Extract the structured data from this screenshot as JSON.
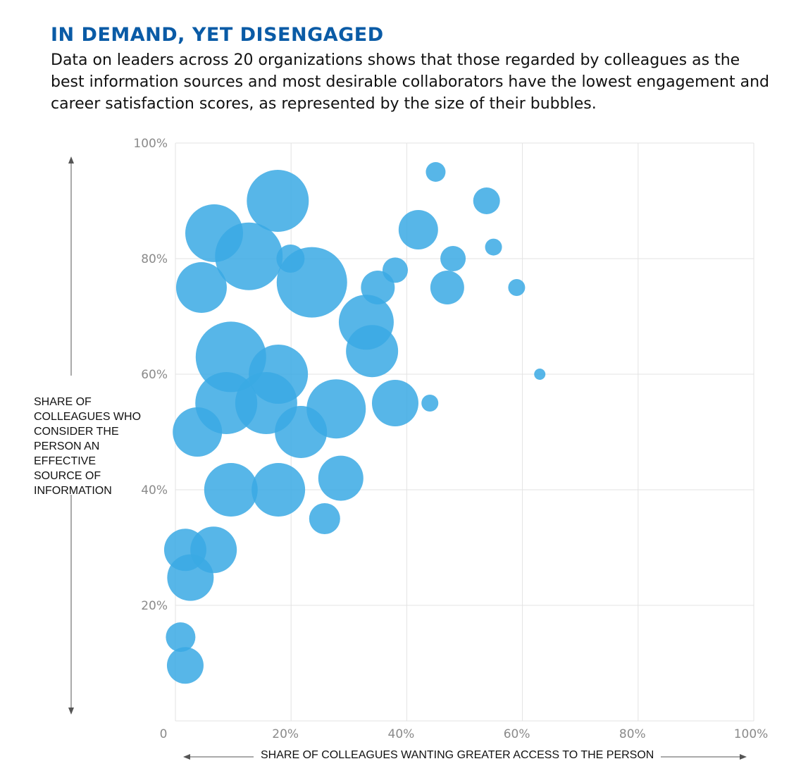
{
  "chart_data": {
    "type": "scatter",
    "title": "IN DEMAND, YET DISENGAGED",
    "subtitle": "Data on leaders across 20 organizations shows that those regarded by colleagues as the best information sources and most desirable collaborators have the lowest engagement and career satisfaction scores, as represented by the size of their bubbles.",
    "xlabel": "SHARE OF COLLEAGUES WANTING GREATER ACCESS TO THE PERSON",
    "ylabel": "SHARE OF COLLEAGUES WHO CONSIDER THE PERSON AN EFFECTIVE SOURCE OF INFORMATION",
    "xlim": [
      0,
      100
    ],
    "ylim": [
      0,
      100
    ],
    "x_ticks": [
      "0",
      "20%",
      "40%",
      "60%",
      "80%",
      "100%"
    ],
    "y_ticks": [
      "20%",
      "40%",
      "60%",
      "80%",
      "100%"
    ],
    "grid": true,
    "bubble_color": "#3aa9e4",
    "title_color": "#0a5ba6",
    "size_note": "bubble size = relative engagement/career satisfaction score",
    "points": [
      {
        "x": 17.7,
        "y": 90,
        "size": 44
      },
      {
        "x": 6.7,
        "y": 84.4,
        "size": 41
      },
      {
        "x": 12.7,
        "y": 80.4,
        "size": 48
      },
      {
        "x": 19.9,
        "y": 80,
        "size": 20
      },
      {
        "x": 4.5,
        "y": 75,
        "size": 36
      },
      {
        "x": 23.6,
        "y": 75.9,
        "size": 50
      },
      {
        "x": 45,
        "y": 95,
        "size": 14
      },
      {
        "x": 53.8,
        "y": 90,
        "size": 19
      },
      {
        "x": 42,
        "y": 85,
        "size": 28
      },
      {
        "x": 55,
        "y": 82,
        "size": 12
      },
      {
        "x": 48,
        "y": 80,
        "size": 18
      },
      {
        "x": 38,
        "y": 78,
        "size": 18
      },
      {
        "x": 35,
        "y": 75,
        "size": 24
      },
      {
        "x": 47,
        "y": 75,
        "size": 24
      },
      {
        "x": 59,
        "y": 75,
        "size": 12
      },
      {
        "x": 33,
        "y": 69,
        "size": 39
      },
      {
        "x": 34,
        "y": 64,
        "size": 37
      },
      {
        "x": 9.6,
        "y": 63,
        "size": 50
      },
      {
        "x": 17.8,
        "y": 60,
        "size": 42
      },
      {
        "x": 63,
        "y": 60,
        "size": 8
      },
      {
        "x": 8.8,
        "y": 55,
        "size": 44
      },
      {
        "x": 15.7,
        "y": 55,
        "size": 44
      },
      {
        "x": 27.8,
        "y": 54,
        "size": 42
      },
      {
        "x": 38,
        "y": 55,
        "size": 33
      },
      {
        "x": 44,
        "y": 55,
        "size": 12
      },
      {
        "x": 3.8,
        "y": 50,
        "size": 35
      },
      {
        "x": 21.7,
        "y": 50,
        "size": 37
      },
      {
        "x": 9.6,
        "y": 40,
        "size": 38
      },
      {
        "x": 17.8,
        "y": 40,
        "size": 38
      },
      {
        "x": 28.6,
        "y": 42,
        "size": 32
      },
      {
        "x": 25.8,
        "y": 35,
        "size": 22
      },
      {
        "x": 1.7,
        "y": 29.6,
        "size": 30
      },
      {
        "x": 6.6,
        "y": 29.6,
        "size": 33
      },
      {
        "x": 2.6,
        "y": 24.8,
        "size": 33
      },
      {
        "x": 0.9,
        "y": 14.5,
        "size": 21
      },
      {
        "x": 1.7,
        "y": 9.6,
        "size": 26
      }
    ]
  }
}
